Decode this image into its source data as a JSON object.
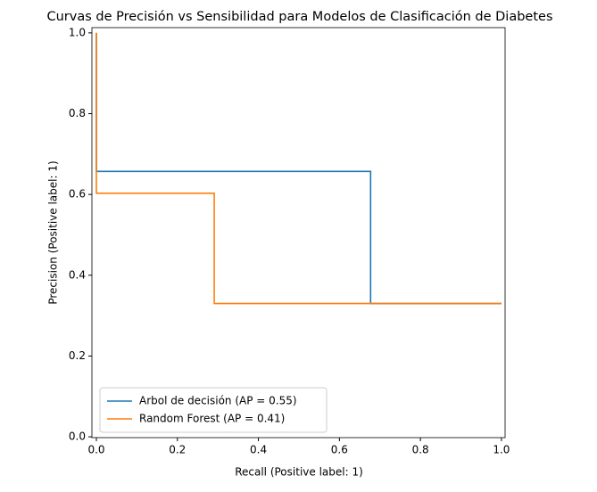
{
  "chart_data": {
    "type": "line",
    "drawstyle": "steps-post",
    "title": "Curvas de Precisión vs Sensibilidad para Modelos de Clasificación de Diabetes",
    "xlabel": "Recall (Positive label: 1)",
    "ylabel": "Precision (Positive label: 1)",
    "series": [
      {
        "name": "Arbol de decisión (AP = 0.55)",
        "color": "#1f77b4",
        "x": [
          1.0,
          0.677,
          0.0
        ],
        "values": [
          0.33,
          0.657,
          1.0
        ]
      },
      {
        "name": "Random Forest (AP = 0.41)",
        "color": "#ff7f0e",
        "x": [
          1.0,
          0.291,
          0.0
        ],
        "values": [
          0.33,
          0.603,
          1.0
        ]
      }
    ],
    "xlim": [
      -0.011,
      1.009
    ],
    "ylim": [
      -0.002,
      1.013
    ],
    "xticks": [
      {
        "value": 0,
        "label": "0.0"
      },
      0.2,
      0.4,
      0.6,
      0.8,
      {
        "value": 1,
        "label": "1.0"
      }
    ],
    "yticks": [
      {
        "value": 0,
        "label": "0.0"
      },
      0.2,
      0.4,
      0.6,
      0.8,
      {
        "value": 1,
        "label": "1.0"
      }
    ],
    "legend": "lower left"
  }
}
